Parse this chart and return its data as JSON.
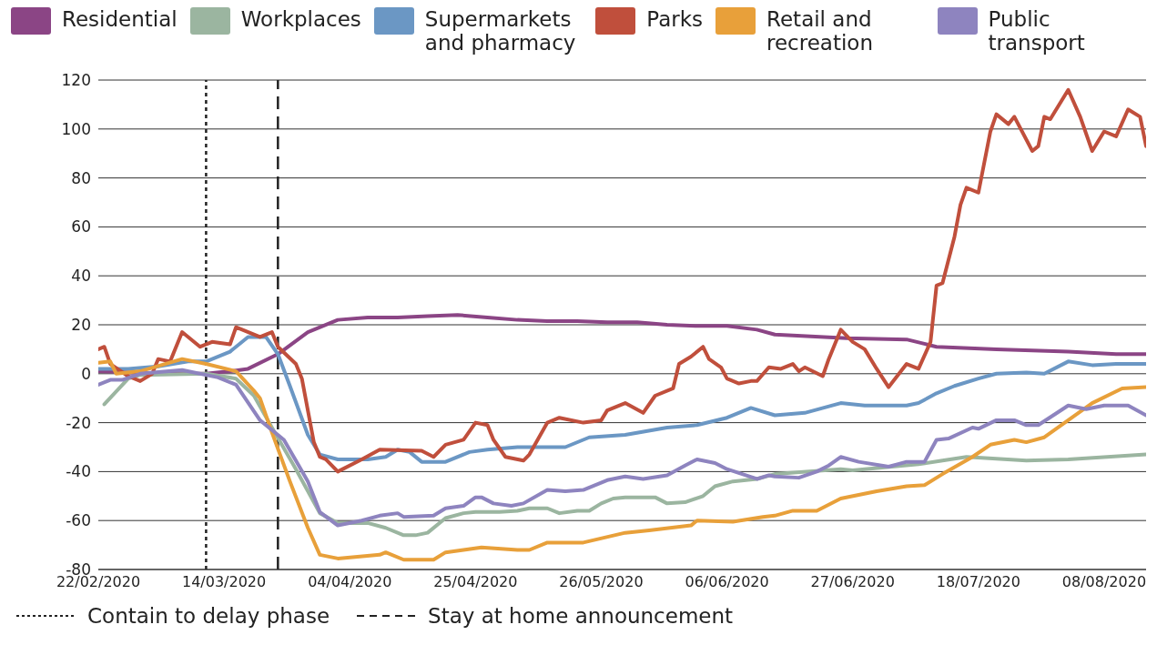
{
  "chart_data": {
    "type": "line",
    "legend": "top",
    "grid": "y",
    "line_style": "solid",
    "marker": "none",
    "xlim": [
      "2020-02-22",
      "2020-08-15"
    ],
    "xticks": [
      {
        "value": "2020-02-22",
        "label": "22/02/2020"
      },
      {
        "value": "2020-03-14",
        "label": "14/03/2020"
      },
      {
        "value": "2020-04-04",
        "label": "04/04/2020"
      },
      {
        "value": "2020-04-25",
        "label": "25/04/2020"
      },
      {
        "value": "2020-05-16",
        "label": "26/05/2020"
      },
      {
        "value": "2020-06-06",
        "label": "06/06/2020"
      },
      {
        "value": "2020-06-27",
        "label": "27/06/2020"
      },
      {
        "value": "2020-07-18",
        "label": "18/07/2020"
      },
      {
        "value": "2020-08-08",
        "label": "08/08/2020"
      }
    ],
    "ylim": [
      -80,
      120
    ],
    "yticks": [
      -80,
      -60,
      -40,
      -20,
      0,
      20,
      40,
      60,
      80,
      100,
      120
    ],
    "ref_lines": [
      {
        "axis": "x",
        "value": "2020-03-11",
        "label": "Contain to delay phase",
        "line_style": "dotted",
        "color": "#222222"
      },
      {
        "axis": "x",
        "value": "2020-03-23",
        "label": "Stay at home announcement",
        "line_style": "dashed",
        "color": "#222222"
      }
    ],
    "series": [
      {
        "name": "Residential",
        "color": "#8b4585",
        "x": [
          "2020-02-22",
          "2020-03-03",
          "2020-03-11",
          "2020-03-15",
          "2020-03-18",
          "2020-03-23",
          "2020-03-28",
          "2020-04-02",
          "2020-04-07",
          "2020-04-12",
          "2020-04-17",
          "2020-04-22",
          "2020-04-27",
          "2020-05-02",
          "2020-05-07",
          "2020-05-12",
          "2020-05-17",
          "2020-05-22",
          "2020-05-27",
          "2020-06-01",
          "2020-06-06",
          "2020-06-11",
          "2020-06-14",
          "2020-06-26",
          "2020-07-06",
          "2020-07-11",
          "2020-07-21",
          "2020-08-02",
          "2020-08-10",
          "2020-08-15"
        ],
        "values": [
          1,
          0,
          0,
          1,
          2,
          8,
          17,
          22,
          23,
          23,
          23.5,
          24,
          23,
          22,
          21.5,
          21.5,
          21,
          21,
          20,
          19.5,
          19.5,
          18,
          16,
          14.5,
          14,
          11,
          10,
          9,
          8,
          8
        ]
      },
      {
        "name": "Workplaces",
        "color": "#9bb5a0",
        "x": [
          "2020-02-23",
          "2020-02-27",
          "2020-02-29",
          "2020-03-11",
          "2020-03-16",
          "2020-03-19",
          "2020-03-22",
          "2020-03-26",
          "2020-03-30",
          "2020-04-02",
          "2020-04-07",
          "2020-04-10",
          "2020-04-13",
          "2020-04-15",
          "2020-04-17",
          "2020-04-20",
          "2020-04-23",
          "2020-04-25",
          "2020-04-29",
          "2020-05-02",
          "2020-05-04",
          "2020-05-07",
          "2020-05-09",
          "2020-05-12",
          "2020-05-14",
          "2020-05-16",
          "2020-05-18",
          "2020-05-20",
          "2020-05-22",
          "2020-05-25",
          "2020-05-27",
          "2020-05-30",
          "2020-06-02",
          "2020-06-04",
          "2020-06-07",
          "2020-06-11",
          "2020-06-14",
          "2020-06-25",
          "2020-06-27",
          "2020-07-08",
          "2020-07-12",
          "2020-07-16",
          "2020-07-26",
          "2020-08-02",
          "2020-08-15"
        ],
        "values": [
          -12.5,
          -2,
          -0.5,
          0,
          -2,
          -9,
          -22,
          -39,
          -57,
          -61,
          -61,
          -63,
          -66,
          -66,
          -65,
          -59,
          -57,
          -56.5,
          -56.5,
          -56,
          -55,
          -55,
          -57,
          -56,
          -56,
          -53,
          -51,
          -50.5,
          -50.5,
          -50.5,
          -53,
          -52.5,
          -50,
          -46,
          -44,
          -43,
          -41,
          -39,
          -39.5,
          -37,
          -35.5,
          -34,
          -35.5,
          -35,
          -33
        ]
      },
      {
        "name": "Supermarkets and pharmacy",
        "color": "#6b97c4",
        "x": [
          "2020-02-22",
          "2020-02-27",
          "2020-03-03",
          "2020-03-08",
          "2020-03-11",
          "2020-03-15",
          "2020-03-18",
          "2020-03-21",
          "2020-03-23",
          "2020-03-25",
          "2020-03-28",
          "2020-03-30",
          "2020-04-02",
          "2020-04-07",
          "2020-04-10",
          "2020-04-12",
          "2020-04-14",
          "2020-04-16",
          "2020-04-20",
          "2020-04-24",
          "2020-04-27",
          "2020-05-02",
          "2020-05-07",
          "2020-05-10",
          "2020-05-14",
          "2020-05-20",
          "2020-05-27",
          "2020-06-01",
          "2020-06-06",
          "2020-06-10",
          "2020-06-14",
          "2020-06-19",
          "2020-06-25",
          "2020-06-29",
          "2020-07-06",
          "2020-07-08",
          "2020-07-11",
          "2020-07-14",
          "2020-07-18",
          "2020-07-21",
          "2020-07-26",
          "2020-07-29",
          "2020-08-02",
          "2020-08-06",
          "2020-08-10",
          "2020-08-15"
        ],
        "values": [
          2,
          2,
          3,
          5,
          5,
          9,
          15,
          15,
          8,
          -5,
          -25,
          -33,
          -35,
          -35,
          -34,
          -31,
          -32,
          -36,
          -36,
          -32,
          -31,
          -30,
          -30,
          -30,
          -26,
          -25,
          -22,
          -21,
          -18,
          -14,
          -17,
          -16,
          -12,
          -13,
          -13,
          -12,
          -8,
          -5,
          -2,
          0,
          0.5,
          0,
          5,
          3.5,
          4,
          4
        ]
      },
      {
        "name": "Parks",
        "color": "#c04f3c",
        "x": [
          "2020-02-22",
          "2020-02-23",
          "2020-02-24",
          "2020-02-27",
          "2020-02-29",
          "2020-03-02",
          "2020-03-03",
          "2020-03-05",
          "2020-03-07",
          "2020-03-10",
          "2020-03-12",
          "2020-03-15",
          "2020-03-16",
          "2020-03-20",
          "2020-03-22",
          "2020-03-23",
          "2020-03-26",
          "2020-03-27",
          "2020-03-29",
          "2020-03-30",
          "2020-03-31",
          "2020-04-02",
          "2020-04-06",
          "2020-04-09",
          "2020-04-16",
          "2020-04-18",
          "2020-04-20",
          "2020-04-23",
          "2020-04-25",
          "2020-04-27",
          "2020-04-28",
          "2020-04-30",
          "2020-05-03",
          "2020-05-04",
          "2020-05-07",
          "2020-05-09",
          "2020-05-13",
          "2020-05-16",
          "2020-05-17",
          "2020-05-20",
          "2020-05-23",
          "2020-05-25",
          "2020-05-28",
          "2020-05-29",
          "2020-05-31",
          "2020-06-02",
          "2020-06-03",
          "2020-06-05",
          "2020-06-06",
          "2020-06-08",
          "2020-06-10",
          "2020-06-11",
          "2020-06-13",
          "2020-06-15",
          "2020-06-17",
          "2020-06-18",
          "2020-06-19",
          "2020-06-22",
          "2020-06-23",
          "2020-06-25",
          "2020-06-27",
          "2020-06-29",
          "2020-07-01",
          "2020-07-03",
          "2020-07-06",
          "2020-07-08",
          "2020-07-10",
          "2020-07-11",
          "2020-07-12",
          "2020-07-14",
          "2020-07-15",
          "2020-07-16",
          "2020-07-18",
          "2020-07-20",
          "2020-07-21",
          "2020-07-23",
          "2020-07-24",
          "2020-07-27",
          "2020-07-28",
          "2020-07-29",
          "2020-07-30",
          "2020-08-02",
          "2020-08-04",
          "2020-08-06",
          "2020-08-08",
          "2020-08-10",
          "2020-08-12",
          "2020-08-14",
          "2020-08-15"
        ],
        "values": [
          10,
          11,
          4,
          -1,
          -3,
          0,
          6,
          5,
          17,
          11,
          13,
          12,
          19,
          15,
          17,
          11,
          4,
          -2,
          -28,
          -34,
          -35,
          -40,
          -35,
          -31,
          -31.5,
          -34,
          -29,
          -27,
          -20,
          -21,
          -27,
          -34,
          -35.5,
          -33,
          -20,
          -18,
          -20,
          -19,
          -15,
          -12,
          -16,
          -9,
          -6,
          4,
          7,
          11,
          6,
          2.6,
          -2,
          -4,
          -3,
          -3,
          2.6,
          2,
          4,
          1,
          2.6,
          -1,
          6,
          18,
          13,
          10,
          2,
          -5.5,
          4,
          2,
          13,
          36,
          37,
          56,
          69,
          76,
          74,
          99,
          106,
          102,
          105,
          91,
          93,
          105,
          104,
          116,
          105,
          91,
          99,
          97,
          108,
          105,
          93
        ]
      },
      {
        "name": "Retail and recreation",
        "color": "#e8a03a",
        "x": [
          "2020-02-22",
          "2020-02-24",
          "2020-02-25",
          "2020-02-29",
          "2020-03-07",
          "2020-03-11",
          "2020-03-16",
          "2020-03-19",
          "2020-03-20",
          "2020-03-22",
          "2020-03-25",
          "2020-03-28",
          "2020-03-30",
          "2020-04-02",
          "2020-04-09",
          "2020-04-10",
          "2020-04-13",
          "2020-04-18",
          "2020-04-20",
          "2020-04-23",
          "2020-04-26",
          "2020-05-02",
          "2020-05-04",
          "2020-05-07",
          "2020-05-13",
          "2020-05-20",
          "2020-05-24",
          "2020-05-31",
          "2020-06-01",
          "2020-06-07",
          "2020-06-12",
          "2020-06-14",
          "2020-06-17",
          "2020-06-21",
          "2020-06-25",
          "2020-07-01",
          "2020-07-06",
          "2020-07-09",
          "2020-07-12",
          "2020-07-17",
          "2020-07-20",
          "2020-07-24",
          "2020-07-26",
          "2020-07-29",
          "2020-08-02",
          "2020-08-06",
          "2020-08-11",
          "2020-08-15"
        ],
        "values": [
          4.5,
          5,
          0,
          1,
          6,
          4,
          1,
          -7,
          -10,
          -24,
          -44,
          -63,
          -74,
          -75.5,
          -74,
          -73,
          -76,
          -76,
          -73,
          -72,
          -71,
          -72,
          -72,
          -69,
          -69,
          -65,
          -64,
          -62,
          -60,
          -60.5,
          -58.5,
          -58,
          -56,
          -56,
          -51,
          -48,
          -46,
          -45.5,
          -41,
          -34,
          -29,
          -27,
          -28,
          -26,
          -19,
          -12,
          -6,
          -5.5
        ]
      },
      {
        "name": "Public transport",
        "color": "#8e84bf",
        "x": [
          "2020-02-22",
          "2020-02-24",
          "2020-02-26",
          "2020-02-29",
          "2020-03-07",
          "2020-03-13",
          "2020-03-16",
          "2020-03-20",
          "2020-03-24",
          "2020-03-28",
          "2020-03-30",
          "2020-04-02",
          "2020-04-06",
          "2020-04-09",
          "2020-04-12",
          "2020-04-13",
          "2020-04-18",
          "2020-04-20",
          "2020-04-23",
          "2020-04-25",
          "2020-04-26",
          "2020-04-28",
          "2020-05-01",
          "2020-05-03",
          "2020-05-07",
          "2020-05-10",
          "2020-05-13",
          "2020-05-17",
          "2020-05-20",
          "2020-05-23",
          "2020-05-27",
          "2020-05-30",
          "2020-06-01",
          "2020-06-04",
          "2020-06-06",
          "2020-06-11",
          "2020-06-13",
          "2020-06-14",
          "2020-06-18",
          "2020-06-21",
          "2020-06-23",
          "2020-06-25",
          "2020-06-28",
          "2020-07-03",
          "2020-07-06",
          "2020-07-09",
          "2020-07-11",
          "2020-07-13",
          "2020-07-17",
          "2020-07-18",
          "2020-07-21",
          "2020-07-24",
          "2020-07-26",
          "2020-07-28",
          "2020-08-02",
          "2020-08-05",
          "2020-08-08",
          "2020-08-12",
          "2020-08-15"
        ],
        "values": [
          -4.5,
          -2.5,
          -2.5,
          0,
          1.5,
          -1.5,
          -4.5,
          -19,
          -27,
          -44,
          -56.5,
          -62,
          -60,
          -58,
          -57,
          -58.5,
          -58,
          -55,
          -54,
          -50.5,
          -50.5,
          -53,
          -54,
          -53,
          -47.5,
          -48,
          -47.5,
          -43.5,
          -42,
          -43,
          -41.5,
          -37.5,
          -35,
          -36.5,
          -39,
          -43,
          -41.5,
          -42,
          -42.5,
          -40,
          -37.5,
          -34,
          -36,
          -38,
          -36,
          -36,
          -27,
          -26.5,
          -22,
          -22.5,
          -19,
          -19,
          -21,
          -21,
          -13,
          -14.5,
          -13,
          -13,
          -17
        ]
      }
    ]
  }
}
